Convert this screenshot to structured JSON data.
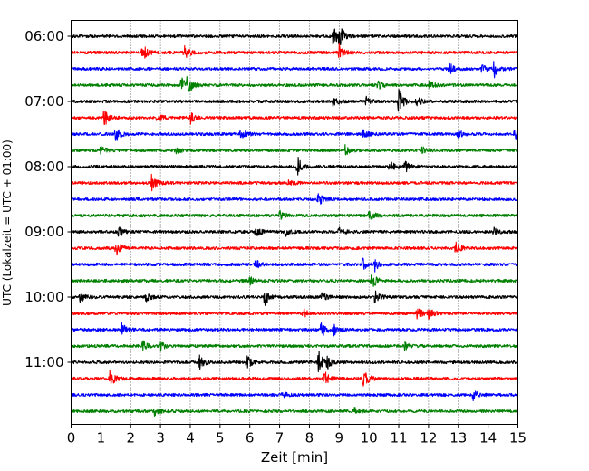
{
  "chart_data": {
    "type": "line",
    "title": "",
    "xlabel": "Zeit  [min]",
    "ylabel": "UTC (Lokalzeit = UTC + 01:00)",
    "xlim": [
      0,
      15
    ],
    "x_ticks": [
      "0",
      "1",
      "2",
      "3",
      "4",
      "5",
      "6",
      "7",
      "8",
      "9",
      "10",
      "11",
      "12",
      "13",
      "14",
      "15"
    ],
    "y_tick_labels": [
      "06:00",
      "07:00",
      "08:00",
      "09:00",
      "10:00",
      "11:00"
    ],
    "grid": "vertical dotted lines at each minute",
    "trace_colors": [
      "#000000",
      "#ff0000",
      "#0000ff",
      "#008000"
    ],
    "traces": [
      {
        "start": "06:00",
        "events": [
          [
            8.8,
            0.55
          ],
          [
            9.0,
            0.7
          ]
        ]
      },
      {
        "start": "06:15",
        "events": [
          [
            2.4,
            0.55
          ],
          [
            3.8,
            0.5
          ],
          [
            9.0,
            0.45
          ]
        ]
      },
      {
        "start": "06:30",
        "events": [
          [
            12.7,
            0.35
          ],
          [
            13.8,
            0.3
          ],
          [
            14.2,
            0.5
          ]
        ]
      },
      {
        "start": "06:45",
        "events": [
          [
            3.7,
            0.45
          ],
          [
            3.9,
            0.6
          ],
          [
            10.3,
            0.25
          ],
          [
            12.0,
            0.3
          ]
        ]
      },
      {
        "start": "07:00",
        "events": [
          [
            8.8,
            0.3
          ],
          [
            9.9,
            0.25
          ],
          [
            11.0,
            0.8
          ],
          [
            11.6,
            0.3
          ]
        ]
      },
      {
        "start": "07:15",
        "events": [
          [
            1.1,
            0.55
          ],
          [
            2.9,
            0.35
          ],
          [
            4.0,
            0.35
          ]
        ]
      },
      {
        "start": "07:30",
        "events": [
          [
            1.5,
            0.45
          ],
          [
            5.7,
            0.35
          ],
          [
            9.8,
            0.25
          ],
          [
            13.0,
            0.25
          ],
          [
            14.9,
            0.35
          ]
        ]
      },
      {
        "start": "07:45",
        "events": [
          [
            1.0,
            0.25
          ],
          [
            3.5,
            0.2
          ],
          [
            9.2,
            0.3
          ],
          [
            11.8,
            0.25
          ]
        ]
      },
      {
        "start": "08:00",
        "events": [
          [
            7.6,
            0.6
          ],
          [
            10.7,
            0.35
          ],
          [
            11.2,
            0.4
          ]
        ]
      },
      {
        "start": "08:15",
        "events": [
          [
            2.7,
            0.7
          ],
          [
            7.3,
            0.2
          ]
        ]
      },
      {
        "start": "08:30",
        "events": [
          [
            8.3,
            0.4
          ]
        ]
      },
      {
        "start": "08:45",
        "events": [
          [
            7.0,
            0.3
          ],
          [
            10.0,
            0.4
          ]
        ]
      },
      {
        "start": "09:00",
        "events": [
          [
            1.6,
            0.3
          ],
          [
            6.2,
            0.3
          ],
          [
            7.2,
            0.25
          ],
          [
            9.0,
            0.3
          ],
          [
            14.2,
            0.25
          ]
        ]
      },
      {
        "start": "09:15",
        "events": [
          [
            1.5,
            0.5
          ],
          [
            12.9,
            0.35
          ]
        ]
      },
      {
        "start": "09:30",
        "events": [
          [
            6.2,
            0.3
          ],
          [
            9.8,
            0.45
          ],
          [
            10.2,
            0.35
          ]
        ]
      },
      {
        "start": "09:45",
        "events": [
          [
            6.0,
            0.25
          ],
          [
            10.1,
            0.5
          ]
        ]
      },
      {
        "start": "10:00",
        "events": [
          [
            0.3,
            0.45
          ],
          [
            2.5,
            0.3
          ],
          [
            6.5,
            0.5
          ],
          [
            8.4,
            0.3
          ],
          [
            10.2,
            0.45
          ]
        ]
      },
      {
        "start": "10:15",
        "events": [
          [
            7.8,
            0.25
          ],
          [
            11.6,
            0.45
          ],
          [
            12.0,
            0.35
          ]
        ]
      },
      {
        "start": "10:30",
        "events": [
          [
            1.7,
            0.35
          ],
          [
            8.4,
            0.5
          ],
          [
            8.8,
            0.35
          ]
        ]
      },
      {
        "start": "10:45",
        "events": [
          [
            2.4,
            0.3
          ],
          [
            3.0,
            0.3
          ],
          [
            11.2,
            0.25
          ]
        ]
      },
      {
        "start": "11:00",
        "events": [
          [
            4.3,
            0.45
          ],
          [
            5.9,
            0.4
          ],
          [
            8.3,
            0.75
          ],
          [
            8.6,
            0.35
          ]
        ]
      },
      {
        "start": "11:15",
        "events": [
          [
            1.3,
            0.55
          ],
          [
            8.5,
            0.45
          ],
          [
            9.8,
            0.6
          ]
        ]
      },
      {
        "start": "11:30",
        "events": [
          [
            7.1,
            0.2
          ],
          [
            13.5,
            0.3
          ]
        ]
      },
      {
        "start": "11:45",
        "events": [
          [
            2.8,
            0.3
          ],
          [
            9.5,
            0.2
          ]
        ]
      }
    ]
  }
}
